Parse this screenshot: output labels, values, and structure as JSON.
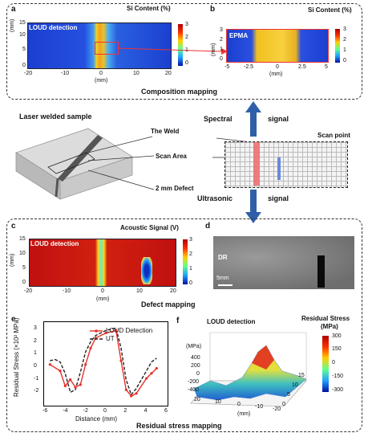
{
  "top_section_label": "Composition mapping",
  "panel_a": {
    "letter": "a",
    "title": "Si Content (%)",
    "tag": "LOUD detection",
    "ylabel": "(mm)",
    "xlabel": "(mm)",
    "xticks": [
      "-20",
      "-10",
      "0",
      "10",
      "20"
    ],
    "yticks": [
      "15",
      "10",
      "5",
      "0"
    ],
    "cbar_ticks": [
      "3",
      "2",
      "1",
      "0"
    ]
  },
  "panel_b": {
    "letter": "b",
    "title": "Si Content (%)",
    "tag": "EPMA",
    "ylabel": "(mm)",
    "xlabel": "(mm)",
    "xticks": [
      "-5",
      "-2.5",
      "0",
      "2.5",
      "5"
    ],
    "yticks": [
      "3",
      "2",
      "1",
      "0"
    ],
    "cbar_ticks": [
      "3",
      "2",
      "1",
      "0"
    ]
  },
  "middle": {
    "sample_label": "Laser welded sample",
    "weld_label": "The Weld",
    "scan_area_label": "Scan Area",
    "defect_label": "2 mm Defect",
    "scan_point_label": "Scan point",
    "spectral_word": "Spectral",
    "ultrasonic_word": "Ultrasonic",
    "signal_word": "signal"
  },
  "bottom_section_label": "Defect mapping",
  "panel_c": {
    "letter": "c",
    "title": "Acoustic Signal (V)",
    "tag": "LOUD detection",
    "ylabel": "(mm)",
    "xlabel": "(mm)",
    "xticks": [
      "-20",
      "-10",
      "0",
      "10",
      "20"
    ],
    "yticks": [
      "15",
      "10",
      "5",
      "0"
    ],
    "cbar_ticks": [
      "3",
      "2",
      "1",
      "0"
    ]
  },
  "panel_d": {
    "letter": "d",
    "tag": "DR",
    "scale_label": "5mm"
  },
  "panel_e": {
    "letter": "e",
    "ylabel": "Residual Stress (×10² MPa)",
    "xlabel": "Distance (mm)",
    "xticks": [
      "-6",
      "-4",
      "-2",
      "0",
      "2",
      "4",
      "6"
    ],
    "yticks": [
      "3",
      "2",
      "1",
      "0",
      "-1",
      "-2"
    ],
    "legend": [
      "LOUD Detection",
      "UT"
    ],
    "colors": {
      "loud": "#e8312a",
      "ut": "#222222"
    }
  },
  "panel_f": {
    "letter": "f",
    "tag": "LOUD detection",
    "zlabel": "(MPa)",
    "zticks": [
      "400",
      "200",
      "0",
      "-200",
      "-400"
    ],
    "xticks": [
      "20",
      "10",
      "0",
      "-10",
      "-20"
    ],
    "yticks": [
      "15",
      "10",
      "5",
      "0"
    ],
    "xlabel": "(mm)",
    "cbar_title": "Residual Stress",
    "cbar_unit": "(MPa)",
    "cbar_ticks": [
      "300",
      "150",
      "0",
      "-150",
      "-300"
    ]
  },
  "residual_section_label": "Residual stress mapping",
  "chart_data": {
    "type": "line",
    "xlabel": "Distance (mm)",
    "ylabel": "Residual Stress (×10² MPa)",
    "xlim": [
      -6,
      6
    ],
    "ylim": [
      -3,
      3.5
    ],
    "series": [
      {
        "name": "LOUD Detection",
        "x": [
          -5.5,
          -4.5,
          -4,
          -3.5,
          -3,
          -2.5,
          -2,
          -1.5,
          -1,
          0,
          1,
          1.5,
          2,
          2.5,
          3,
          4,
          4.5,
          5
        ],
        "values": [
          0.2,
          -0.3,
          -1.5,
          -1.0,
          -1.6,
          -1.4,
          0.2,
          1.5,
          2.3,
          2.7,
          2.9,
          0.5,
          -1.8,
          -2.3,
          -2.1,
          -0.9,
          -0.5,
          -0.1
        ]
      },
      {
        "name": "UT",
        "x": [
          -5.5,
          -5,
          -4.5,
          -4,
          -3.5,
          -3,
          -2.5,
          -2,
          -1.5,
          -1,
          0,
          1,
          1.5,
          2,
          2.5,
          3,
          4,
          4.5,
          5
        ],
        "values": [
          0.5,
          0.6,
          0.4,
          -0.5,
          -2.0,
          -1.8,
          -0.4,
          1.2,
          2.0,
          2.5,
          2.9,
          3.1,
          1.5,
          -1.0,
          -2.2,
          -1.7,
          -0.3,
          0.4,
          0.7
        ]
      }
    ]
  }
}
